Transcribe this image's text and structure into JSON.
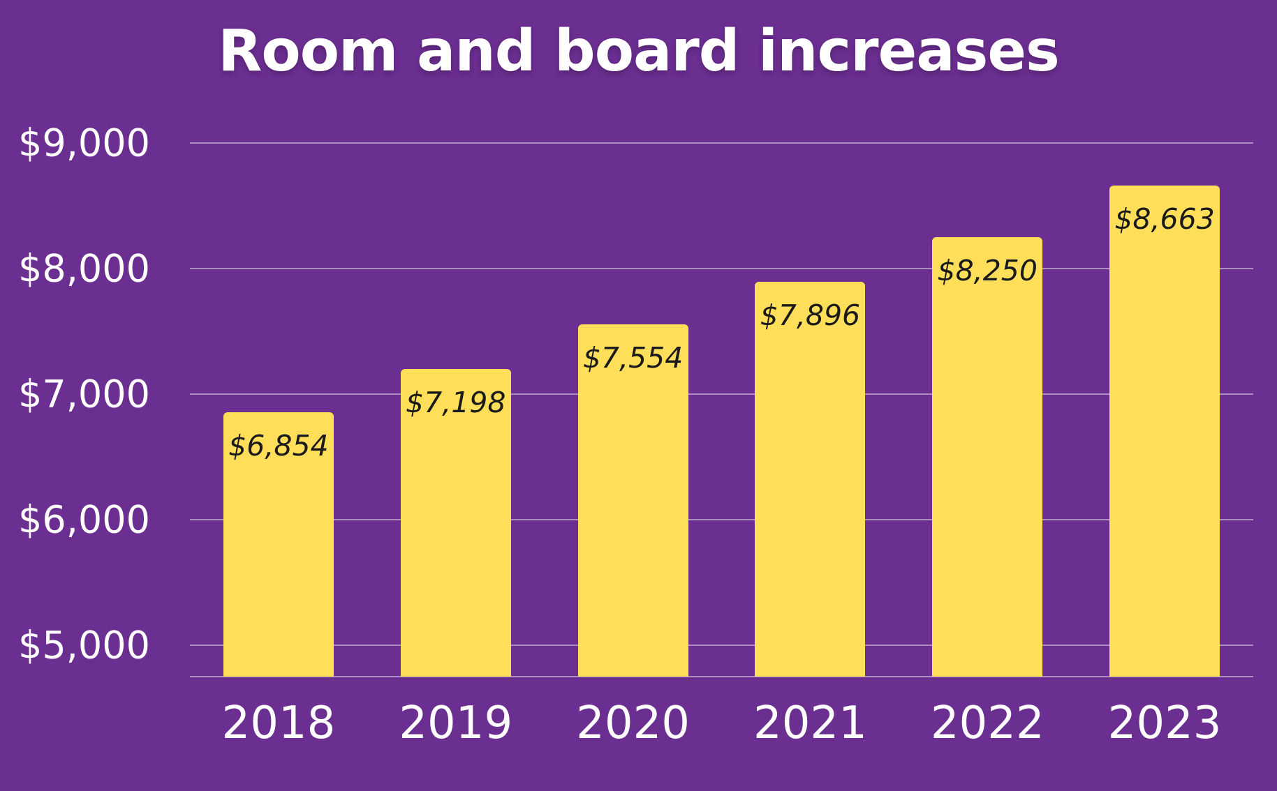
{
  "chart_data": {
    "type": "bar",
    "title": "Room and board increases",
    "categories": [
      "2018",
      "2019",
      "2020",
      "2021",
      "2022",
      "2023"
    ],
    "values": [
      6854,
      7198,
      7554,
      7896,
      8250,
      8663
    ],
    "bar_labels": [
      "$6,854",
      "$7,198",
      "$7,554",
      "$7,896",
      "$8,250",
      "$8,663"
    ],
    "yticks": [
      {
        "value": 9000,
        "label": "$9,000"
      },
      {
        "value": 8000,
        "label": "$8,000"
      },
      {
        "value": 7000,
        "label": "$7,000"
      },
      {
        "value": 6000,
        "label": "$6,000"
      },
      {
        "value": 5000,
        "label": "$5,000"
      }
    ],
    "ylim": [
      4750,
      9250
    ],
    "xlabel": "",
    "ylabel": "",
    "grid": true,
    "legend": "none",
    "bar_label_position": "inside-top",
    "colors": {
      "background": "#6B2E91",
      "bar": "#FFDE59",
      "bar_label": "#1A1A1A",
      "axis_text": "#FFFFFF",
      "gridline": "rgba(255,255,255,0.45)"
    }
  }
}
